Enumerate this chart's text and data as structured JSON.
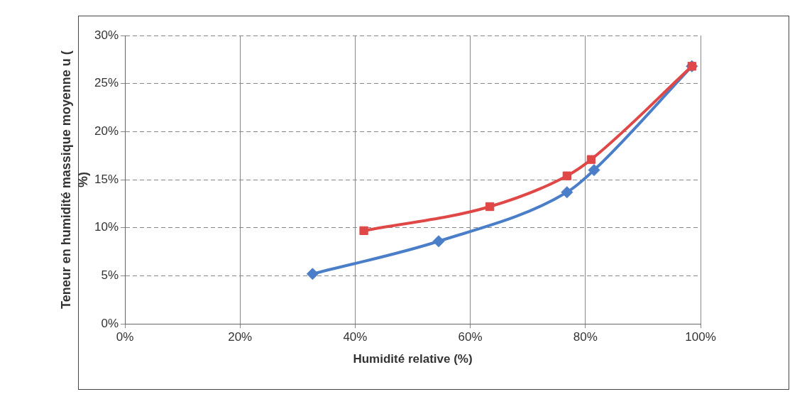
{
  "chart_data": {
    "type": "line",
    "xlabel": "Humidité relative (%)",
    "ylabel": "Teneur en humidité massique moyenne u ( %)",
    "xlim": [
      0,
      100
    ],
    "xticks": [
      {
        "value": 0,
        "label": "0%"
      },
      {
        "value": 20,
        "label": "20%"
      },
      {
        "value": 40,
        "label": "40%"
      },
      {
        "value": 60,
        "label": "60%"
      },
      {
        "value": 80,
        "label": "80%"
      },
      {
        "value": 100,
        "label": "100%"
      }
    ],
    "ylim": [
      0,
      30
    ],
    "yticks": [
      {
        "value": 0,
        "label": "0%"
      },
      {
        "value": 5,
        "label": "5%"
      },
      {
        "value": 10,
        "label": "10%"
      },
      {
        "value": 15,
        "label": "15%"
      },
      {
        "value": 20,
        "label": "20%"
      },
      {
        "value": 25,
        "label": "25%"
      },
      {
        "value": 30,
        "label": "30%"
      }
    ],
    "grid": true,
    "legend": false,
    "series": [
      {
        "color": "#4a7ec8",
        "marker": "diamond",
        "x": [
          32.6,
          54.5,
          76.8,
          81.5,
          98.5
        ],
        "values": [
          5.2,
          8.6,
          13.7,
          16.0,
          26.8
        ]
      },
      {
        "color": "#e04848",
        "marker": "square",
        "x": [
          41.5,
          63.4,
          76.8,
          81.0,
          98.5
        ],
        "values": [
          9.7,
          12.2,
          15.4,
          17.1,
          26.8
        ]
      }
    ]
  }
}
